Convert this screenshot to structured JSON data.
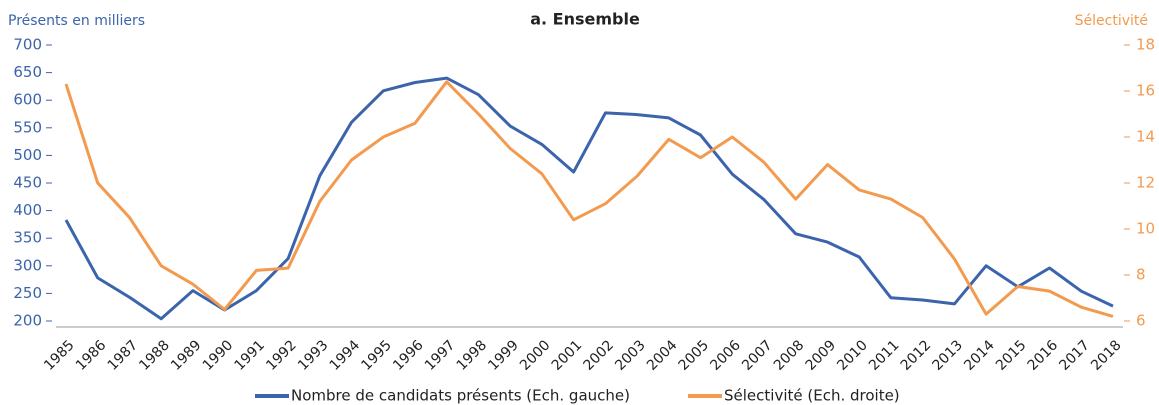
{
  "chart_data": {
    "type": "line",
    "title": "a. Ensemble",
    "y_label": "Présents en milliers",
    "y2_label": "Sélectivité",
    "categories": [
      "1985",
      "1986",
      "1987",
      "1988",
      "1989",
      "1990",
      "1991",
      "1992",
      "1993",
      "1994",
      "1995",
      "1996",
      "1997",
      "1998",
      "1999",
      "2000",
      "2001",
      "2002",
      "2003",
      "2004",
      "2005",
      "2006",
      "2007",
      "2008",
      "2009",
      "2010",
      "2011",
      "2012",
      "2013",
      "2014",
      "2015",
      "2016",
      "2017",
      "2018"
    ],
    "series": [
      {
        "name": "Nombre de candidats présents (Ech. gauche)",
        "color": "#3b64ad",
        "axis": "y",
        "values": [
          383,
          278,
          243,
          204,
          255,
          220,
          255,
          313,
          463,
          560,
          617,
          632,
          640,
          610,
          553,
          520,
          470,
          577,
          574,
          568,
          537,
          466,
          420,
          358,
          343,
          316,
          242,
          238,
          231,
          300,
          262,
          296,
          254,
          227
        ]
      },
      {
        "name": "Sélectivité (Ech. droite)",
        "color": "#f39a4f",
        "axis": "y2",
        "values": [
          16.3,
          12.0,
          10.5,
          8.4,
          7.6,
          6.5,
          8.2,
          8.3,
          11.2,
          13.0,
          14.0,
          14.6,
          16.4,
          15.0,
          13.5,
          12.4,
          10.4,
          11.1,
          12.3,
          13.9,
          13.1,
          14.0,
          12.9,
          11.3,
          12.8,
          11.7,
          11.3,
          10.5,
          8.7,
          6.3,
          7.5,
          7.3,
          6.6,
          6.2
        ]
      }
    ],
    "ylim": [
      200,
      700
    ],
    "yticks": [
      200,
      250,
      300,
      350,
      400,
      450,
      500,
      550,
      600,
      650,
      700
    ],
    "y2lim": [
      6,
      18
    ],
    "y2ticks": [
      6,
      8,
      10,
      12,
      14,
      16,
      18
    ],
    "grid": false,
    "legend": "bottom"
  }
}
